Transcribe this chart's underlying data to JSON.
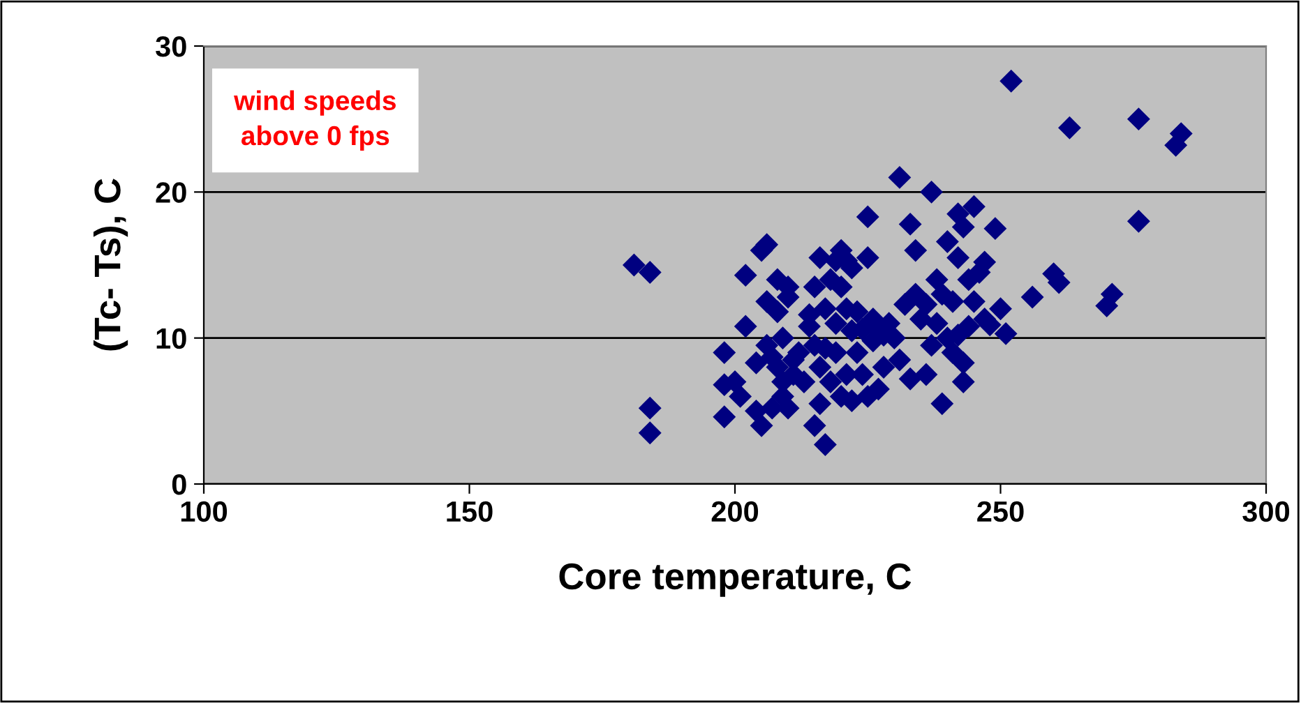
{
  "chart_data": {
    "type": "scatter",
    "xlabel": "Core temperature, C",
    "ylabel": "(Tc- Ts), C",
    "annotations": [
      "wind speeds\nabove 0 fps"
    ],
    "xlim": [
      100,
      300
    ],
    "xticks": [
      100,
      150,
      200,
      250,
      300
    ],
    "ylim": [
      0,
      30
    ],
    "yticks": [
      0,
      10,
      20,
      30
    ],
    "grid": "y",
    "marker": "diamond",
    "series": [
      {
        "color": "#000080",
        "x": [
          181,
          184,
          184,
          184,
          198,
          198,
          198,
          200,
          201,
          202,
          202,
          204,
          204,
          205,
          205,
          206,
          206,
          206,
          207,
          207,
          208,
          208,
          208,
          209,
          209,
          209,
          210,
          210,
          210,
          211,
          211,
          212,
          213,
          214,
          214,
          215,
          215,
          215,
          216,
          216,
          216,
          217,
          217,
          217,
          218,
          218,
          219,
          219,
          219,
          220,
          220,
          220,
          221,
          221,
          221,
          222,
          222,
          222,
          223,
          223,
          224,
          224,
          225,
          225,
          225,
          226,
          226,
          227,
          227,
          228,
          228,
          229,
          230,
          231,
          231,
          232,
          233,
          233,
          234,
          234,
          235,
          236,
          236,
          237,
          237,
          238,
          238,
          239,
          239,
          240,
          240,
          241,
          241,
          242,
          242,
          242,
          243,
          243,
          243,
          244,
          244,
          245,
          245,
          246,
          247,
          247,
          248,
          249,
          250,
          251,
          252,
          256,
          260,
          261,
          263,
          270,
          271,
          276,
          276,
          283,
          284
        ],
        "values": [
          15,
          14.5,
          5.2,
          3.5,
          4.6,
          6.8,
          9,
          7,
          6,
          10.8,
          14.3,
          8.3,
          5,
          4,
          16,
          16.4,
          12.5,
          9.5,
          8.7,
          5.2,
          14,
          11.8,
          8,
          7,
          6,
          10,
          13.5,
          12.8,
          5.2,
          8.5,
          7.5,
          9,
          7,
          11.6,
          10.8,
          13.5,
          4,
          9.5,
          15.5,
          5.5,
          8,
          2.7,
          9.3,
          12,
          14,
          7,
          15.3,
          11,
          9,
          16,
          6,
          13.5,
          7.5,
          12,
          15.3,
          5.7,
          10.5,
          14.8,
          9,
          11.8,
          10.6,
          7.5,
          18.3,
          15.5,
          6,
          9.8,
          11.3,
          10.5,
          6.5,
          8,
          10.2,
          11,
          10,
          21,
          8.5,
          12.3,
          17.8,
          7.2,
          16,
          13,
          11.3,
          7.5,
          12.3,
          20,
          9.5,
          14,
          11,
          5.5,
          13,
          10,
          16.6,
          12.5,
          9,
          18.5,
          15.5,
          10.2,
          7,
          8.3,
          17.6,
          14,
          10.8,
          19,
          12.5,
          14.5,
          11.3,
          15.2,
          10.9,
          17.5,
          12,
          10.3,
          27.6,
          12.8,
          14.4,
          13.8,
          24.4,
          12.2,
          13,
          25,
          18,
          23.2,
          24
        ]
      }
    ]
  }
}
